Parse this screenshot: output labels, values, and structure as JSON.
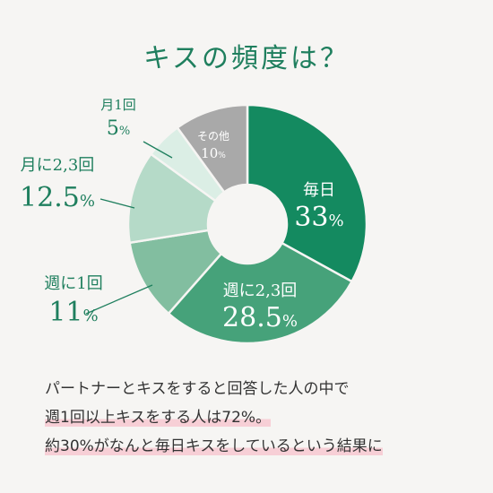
{
  "title": "キスの頻度は？",
  "colors": {
    "daily": "#148a60",
    "twothree_week": "#46a27a",
    "once_week": "#82bea0",
    "twothree_month": "#b5dac8",
    "once_month": "#dbeee5",
    "other": "#a9a9a9",
    "leader": "#1f7f5e"
  },
  "chart_data": {
    "type": "pie",
    "style": "donut",
    "title": "キスの頻度は？",
    "slices": [
      {
        "label": "毎日",
        "value": 33,
        "display": "33",
        "color": "#148a60",
        "text_color": "#ffffff"
      },
      {
        "label": "週に2,3回",
        "value": 28.5,
        "display": "28.5",
        "color": "#46a27a",
        "text_color": "#ffffff"
      },
      {
        "label": "週に1回",
        "value": 11,
        "display": "11",
        "color": "#82bea0",
        "text_color": "#1f7f5e"
      },
      {
        "label": "月に2,3回",
        "value": 12.5,
        "display": "12.5",
        "color": "#b5dac8",
        "text_color": "#1f7f5e"
      },
      {
        "label": "月1回",
        "value": 5,
        "display": "5",
        "color": "#dbeee5",
        "text_color": "#1f7f5e"
      },
      {
        "label": "その他",
        "value": 10,
        "display": "10",
        "color": "#a9a9a9",
        "text_color": "#ffffff"
      }
    ]
  },
  "caption": {
    "line1": "パートナーとキスをすると回答した人の中で",
    "line2": "週1回以上キスをする人は72%。",
    "line3": "約30%がなんと毎日キスをしているという結果に"
  }
}
